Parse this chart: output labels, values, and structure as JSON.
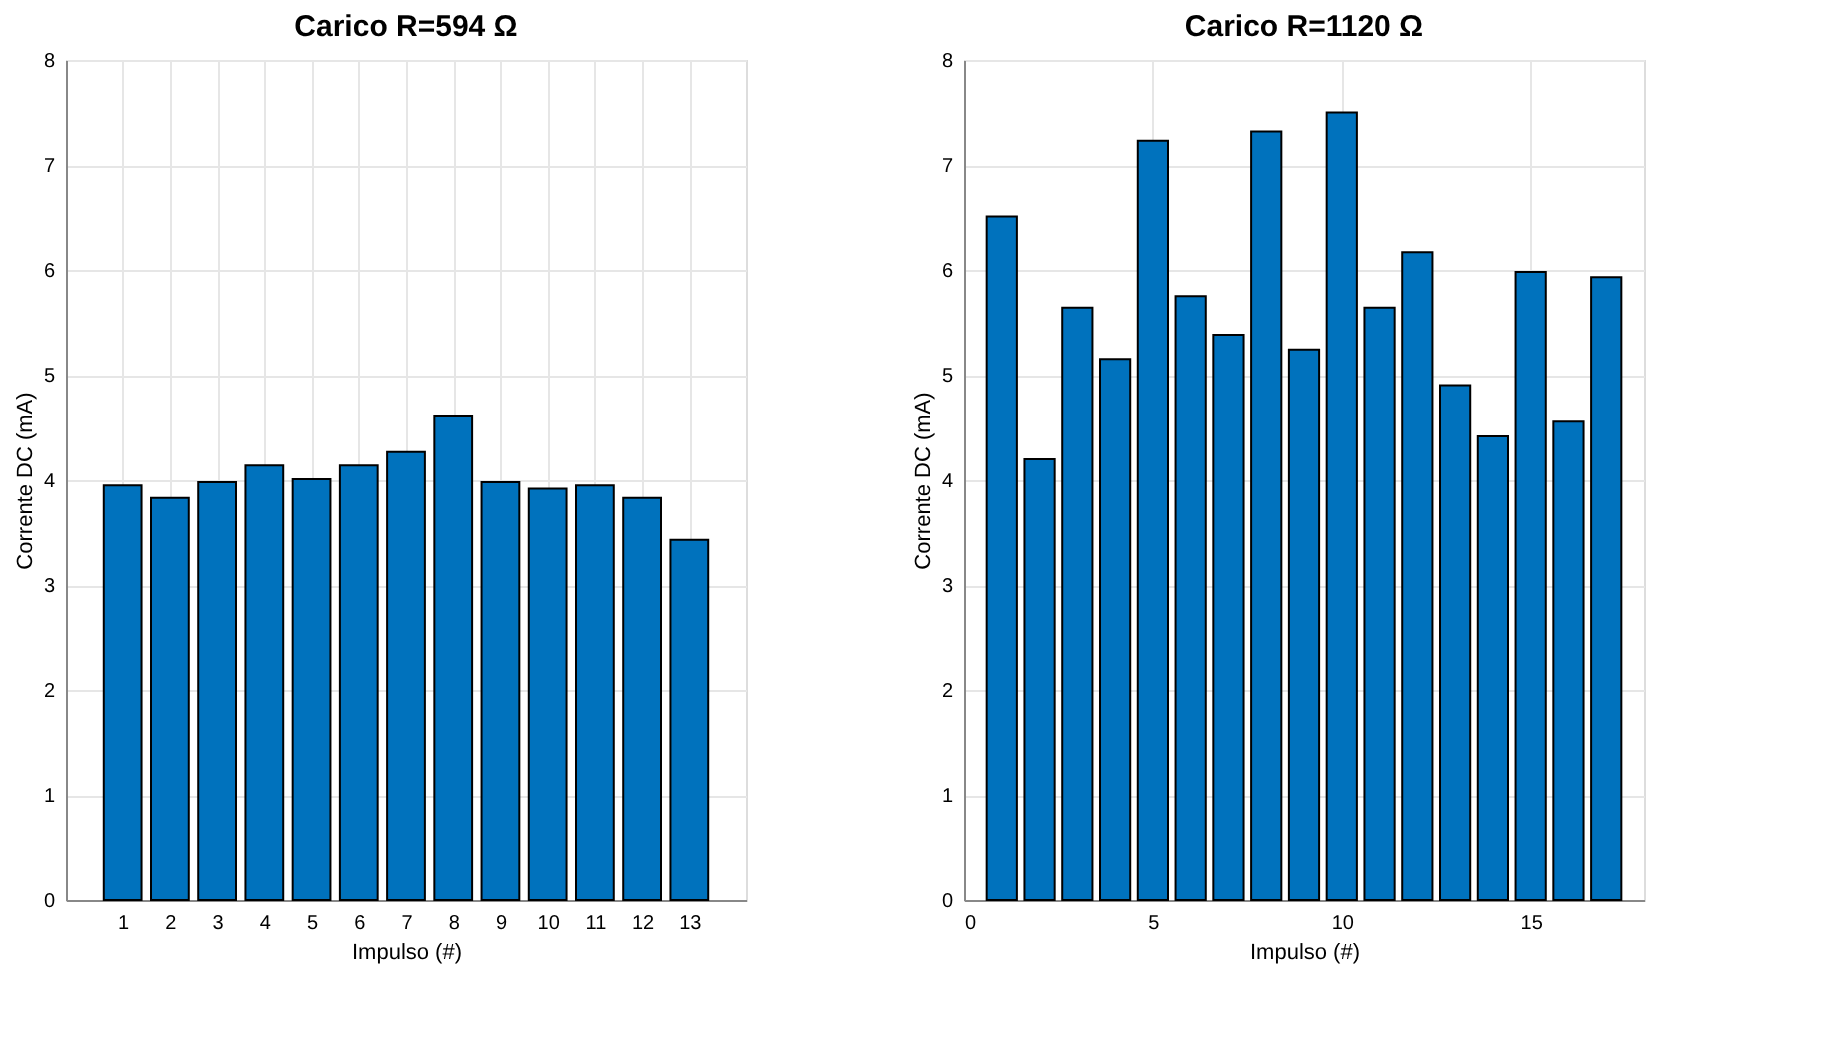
{
  "chart_data": [
    {
      "type": "bar",
      "title": "Carico R=594 Ω",
      "xlabel": "Impulso (#)",
      "ylabel": "Corrente DC (mA)",
      "x": [
        1,
        2,
        3,
        4,
        5,
        6,
        7,
        8,
        9,
        10,
        11,
        12,
        13
      ],
      "series": [
        {
          "color": "#0072bd",
          "values": [
            3.95,
            3.83,
            3.98,
            4.14,
            4.01,
            4.14,
            4.27,
            4.61,
            3.98,
            3.92,
            3.95,
            3.83,
            3.43
          ]
        }
      ],
      "xlim": [
        -0.2,
        14.2
      ],
      "xticks": [
        1,
        2,
        3,
        4,
        5,
        6,
        7,
        8,
        9,
        10,
        11,
        12,
        13
      ],
      "ylim": [
        0,
        8
      ],
      "yticks": [
        0,
        1,
        2,
        3,
        4,
        5,
        6,
        7,
        8
      ],
      "grid": true
    },
    {
      "type": "bar",
      "title": "Carico R=1120 Ω",
      "xlabel": "Impulso (#)",
      "ylabel": "Corrente DC (mA)",
      "x": [
        1,
        2,
        3,
        4,
        5,
        6,
        7,
        8,
        9,
        10,
        11,
        12,
        13,
        14,
        15,
        16,
        17
      ],
      "series": [
        {
          "color": "#0072bd",
          "values": [
            6.51,
            4.2,
            5.64,
            5.15,
            7.23,
            5.75,
            5.38,
            7.32,
            5.24,
            7.5,
            5.64,
            6.17,
            4.9,
            4.42,
            5.98,
            4.56,
            5.93
          ]
        }
      ],
      "xlim": [
        0,
        18
      ],
      "xticks": [
        0,
        5,
        10,
        15
      ],
      "ylim": [
        0,
        8
      ],
      "yticks": [
        0,
        1,
        2,
        3,
        4,
        5,
        6,
        7,
        8
      ],
      "grid": true
    }
  ]
}
